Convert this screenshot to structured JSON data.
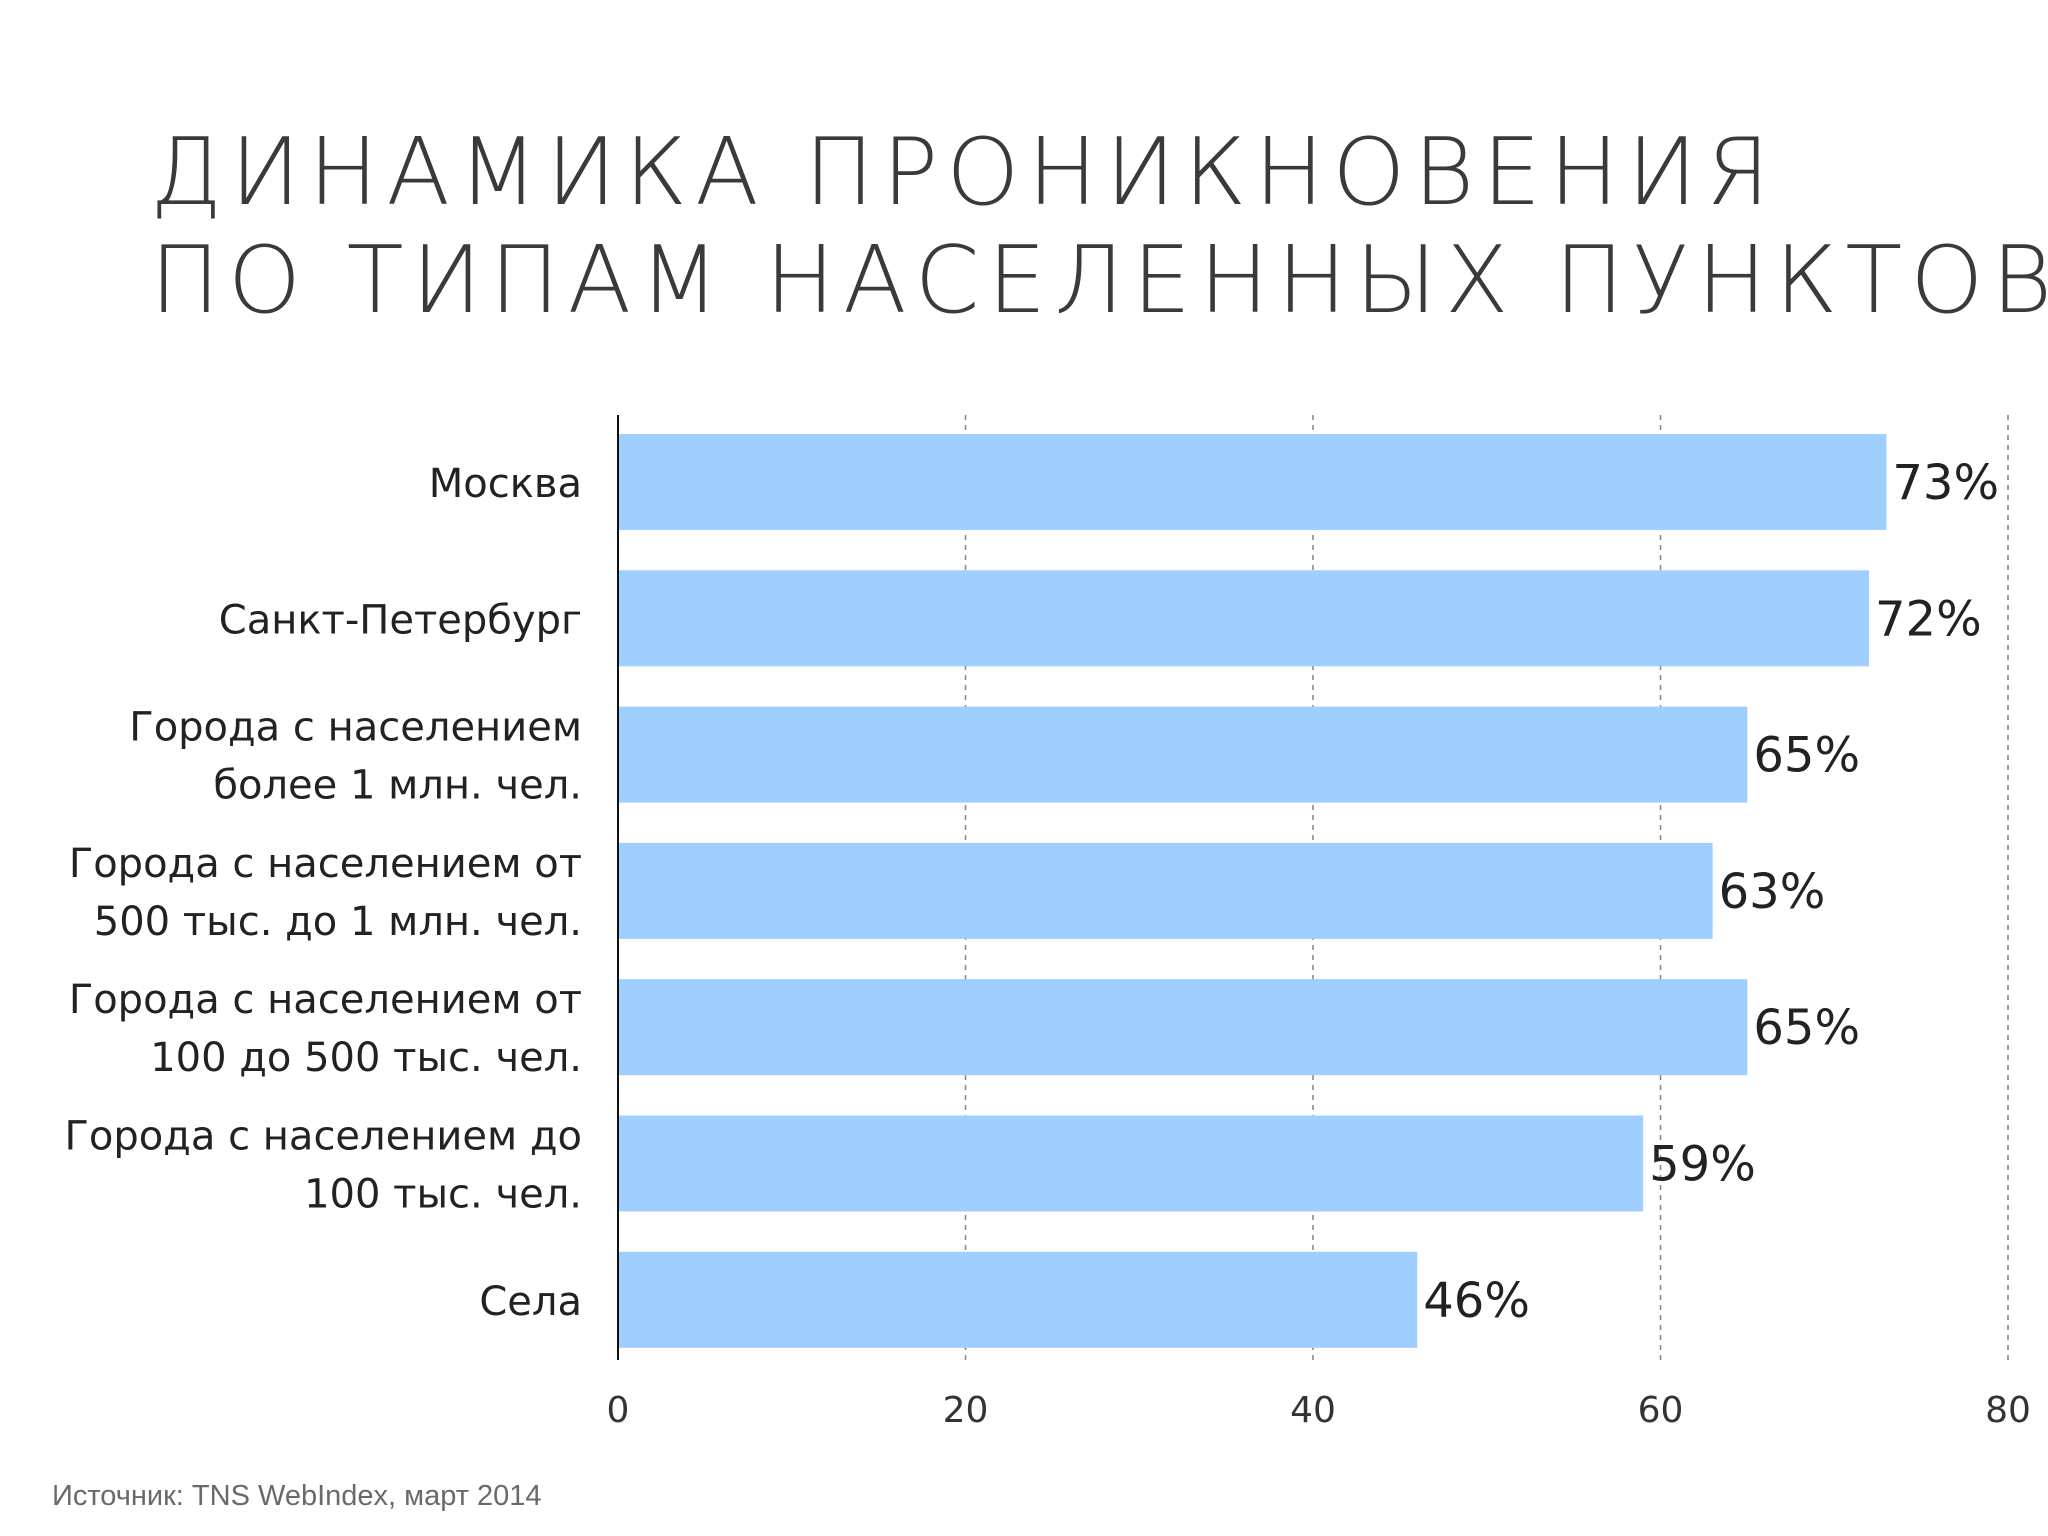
{
  "title": {
    "line1": "ДИНАМИКА ПРОНИКНОВЕНИЯ",
    "line2": "ПО ТИПАМ НАСЕЛЕННЫХ ПУНКТОВ"
  },
  "source": "Источник: TNS WebIndex, март 2014",
  "chart_data": {
    "type": "bar",
    "orientation": "horizontal",
    "categories": [
      [
        "Москва"
      ],
      [
        "Санкт-Петербург"
      ],
      [
        "Города с населением",
        "более 1 млн. чел."
      ],
      [
        "Города с населением от",
        "500 тыс. до 1 млн. чел."
      ],
      [
        "Города с населением от",
        "100 до 500 тыс. чел."
      ],
      [
        "Города с населением до",
        "100 тыс. чел."
      ],
      [
        "Села"
      ]
    ],
    "values": [
      73,
      72,
      65,
      63,
      65,
      59,
      46
    ],
    "value_labels": [
      "73%",
      "72%",
      "65%",
      "63%",
      "65%",
      "59%",
      "46%"
    ],
    "xlim": [
      0,
      80
    ],
    "xticks": [
      0,
      20,
      40,
      60,
      80
    ],
    "grid": "vertical dashed",
    "bar_color": "#9ecfff"
  }
}
